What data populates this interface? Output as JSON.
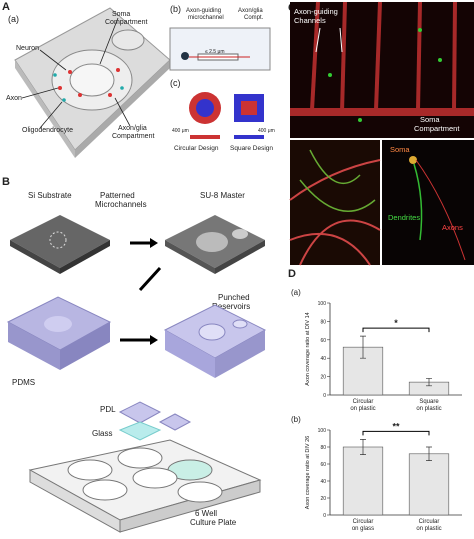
{
  "panel_a": {
    "letter": "A",
    "sub_a": "(a)",
    "soma_compartment": [
      "Soma",
      "Compartment"
    ],
    "neuron": "Neuron",
    "axon": "Axon",
    "oligodendrocyte": "Oligodendrocyte",
    "axon_glia_compartment": [
      "Axon/glia",
      "Compartment"
    ],
    "sub_b": "(b)",
    "microchannel": [
      "Axon-guiding",
      "microchannel"
    ],
    "axon_glia_compt": [
      "Axon/glia",
      "Compt."
    ],
    "channel_height": "≤ 2.5 μm",
    "sub_c": "(c)",
    "scale_circular": "400 μm",
    "scale_square": "400 μm",
    "circular_design": "Circular Design",
    "square_design": "Square Design"
  },
  "panel_b": {
    "letter": "B",
    "si_substrate": "Si Substrate",
    "patterned_microchannels": [
      "Patterned",
      "Microchannels"
    ],
    "su8_master": "SU-8 Master",
    "punched_reservoirs": [
      "Punched",
      "Reservoirs"
    ],
    "pdms": "PDMS",
    "pdl": "PDL",
    "glass": "Glass",
    "culture_plate": [
      "6 Well",
      "Culture Plate"
    ]
  },
  "panel_c": {
    "letter": "C",
    "channels": [
      "Axon-guiding",
      "Channels"
    ],
    "soma_compartment": [
      "Soma",
      "Compartment"
    ],
    "soma": "Soma",
    "dendrites": "Dendrites",
    "axons": "Axons"
  },
  "panel_d": {
    "letter": "D",
    "charts": [
      {
        "type": "bar",
        "panel": "(a)",
        "ylabel": "Axon coverage ratio at DIV 14",
        "categories": [
          [
            "Circular",
            "on plastic"
          ],
          [
            "Square",
            "on plastic"
          ]
        ],
        "values": [
          52,
          14
        ],
        "errors": [
          12,
          4
        ],
        "significance": "*",
        "ylim": [
          0,
          100
        ],
        "yticks": [
          0,
          20,
          40,
          60,
          80,
          100
        ],
        "color": "#e6e6e6"
      },
      {
        "type": "bar",
        "panel": "(b)",
        "ylabel": "Axon coverage ratio at DIV 26",
        "categories": [
          [
            "Circular",
            "on glass"
          ],
          [
            "Circular",
            "on plastic"
          ]
        ],
        "values": [
          80,
          72
        ],
        "errors": [
          9,
          8
        ],
        "significance": "**",
        "ylim": [
          0,
          100
        ],
        "yticks": [
          0,
          20,
          40,
          60,
          80,
          100
        ],
        "color": "#e6e6e6"
      }
    ]
  }
}
